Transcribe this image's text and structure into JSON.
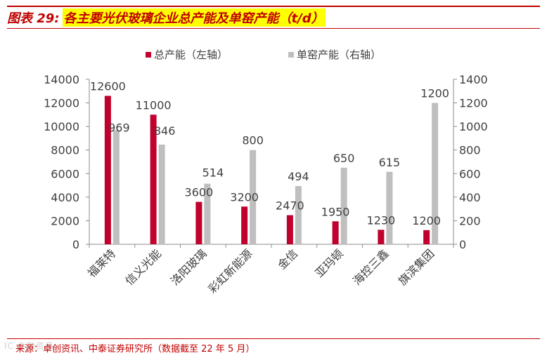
{
  "figure": {
    "label": "图表 29:",
    "title": "各主要光伏玻璃企业总产能及单窑产能（t/d）"
  },
  "source": "来源：卓创资讯、中泰证券研究所（数据截至 22 年 5 月）",
  "watermark": "IC 金融资讯",
  "chart_data": {
    "type": "bar",
    "categories": [
      "福莱特",
      "信义光能",
      "洛阳玻璃",
      "彩虹新能源",
      "金信",
      "亚玛顿",
      "海控三鑫",
      "旗滨集团"
    ],
    "series": [
      {
        "name": "总产能（左轴）",
        "axis": "left",
        "color": "#c0002d",
        "values": [
          12600,
          11000,
          3600,
          3200,
          2470,
          1950,
          1230,
          1200
        ],
        "labels": [
          "12600",
          "11000",
          "3600",
          "3200",
          "2470",
          "1950",
          "1230",
          "1200"
        ]
      },
      {
        "name": "单窑产能（右轴）",
        "axis": "right",
        "color": "#bfbfbf",
        "values": [
          969,
          846,
          514,
          800,
          494,
          650,
          615,
          1200
        ],
        "labels": [
          "969",
          "846",
          "514",
          "800",
          "494",
          "650",
          "615",
          "1200"
        ]
      }
    ],
    "y_left": {
      "min": 0,
      "max": 14000,
      "ticks": [
        "0",
        "2000",
        "4000",
        "6000",
        "8000",
        "10000",
        "12000",
        "14000"
      ]
    },
    "y_right": {
      "min": 0,
      "max": 1400,
      "ticks": [
        "0",
        "200",
        "400",
        "600",
        "800",
        "1000",
        "1200",
        "1400"
      ]
    },
    "legend_position": "top-center",
    "grid": false
  }
}
